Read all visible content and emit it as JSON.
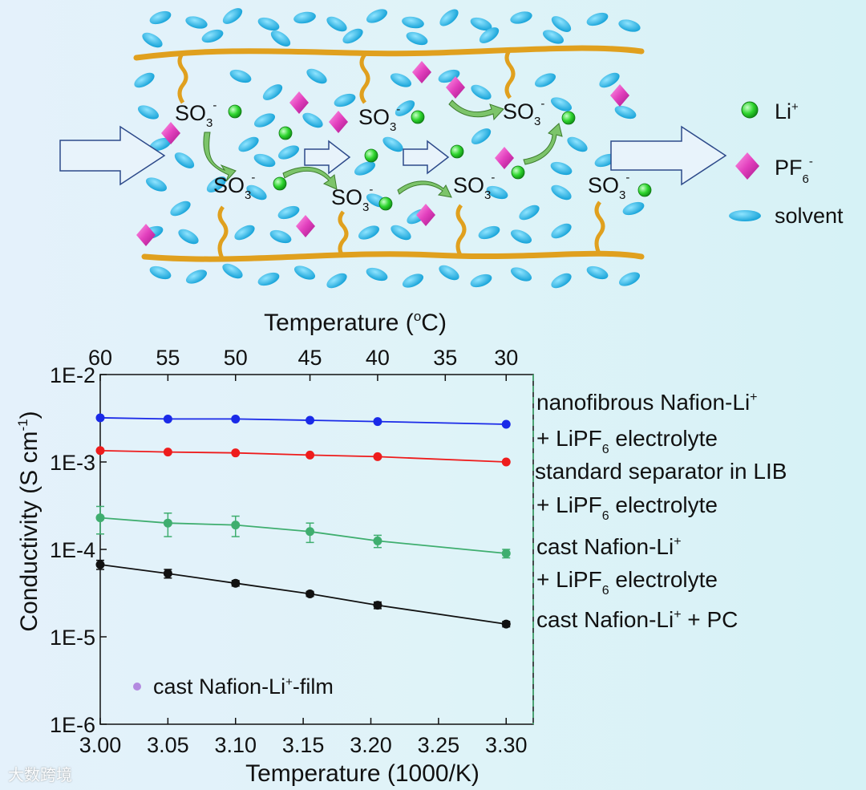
{
  "colors": {
    "solvent": "#19b6ea",
    "li": "#2fd62f",
    "pf6": "#e23fbd",
    "chain": "#e0a01e",
    "arrow": "#4a9d3b"
  },
  "diagram": {
    "so3_base": "SO",
    "so3_sub": "3",
    "so3_sup": "-"
  },
  "legend_top": {
    "li_base": "Li",
    "li_sup": "+",
    "pf6_base": "PF",
    "pf6_sub": "6",
    "pf6_sup": "-",
    "solvent": "solvent"
  },
  "chart_data": {
    "type": "line",
    "x_axis": {
      "label": "Temperature (1000/K)",
      "range": [
        3.0,
        3.32
      ],
      "ticks": [
        3.0,
        3.05,
        3.1,
        3.15,
        3.2,
        3.25,
        3.3
      ],
      "tick_labels": [
        "3.00",
        "3.05",
        "3.10",
        "3.15",
        "3.20",
        "3.25",
        "3.30"
      ]
    },
    "x2_axis": {
      "label_pre": "Temperature (",
      "label_sup": "o",
      "label_post": "C)",
      "tick_labels": [
        "60",
        "55",
        "50",
        "45",
        "40",
        "35",
        "30"
      ],
      "tick_positions": [
        3.0,
        3.05,
        3.1,
        3.155,
        3.205,
        3.255,
        3.3
      ]
    },
    "y_axis": {
      "label_pre": "Conductivity (S cm",
      "label_sup": "-1",
      "label_post": ")",
      "scale": "log",
      "range": [
        1e-06,
        0.01
      ],
      "tick_labels": [
        "1E-2",
        "1E-3",
        "1E-4",
        "1E-5",
        "1E-6"
      ],
      "tick_values": [
        0.01,
        0.001,
        0.0001,
        1e-05,
        1e-06
      ]
    },
    "series": [
      {
        "color": "#1a2ae8",
        "x": [
          3.0,
          3.05,
          3.1,
          3.155,
          3.205,
          3.3
        ],
        "y": [
          0.0032,
          0.0031,
          0.0031,
          0.003,
          0.0029,
          0.0027
        ]
      },
      {
        "color": "#ee1c1c",
        "x": [
          3.0,
          3.05,
          3.1,
          3.155,
          3.205,
          3.3
        ],
        "y": [
          0.00135,
          0.0013,
          0.00127,
          0.0012,
          0.00115,
          0.001
        ]
      },
      {
        "color": "#3fae6f",
        "x": [
          3.0,
          3.05,
          3.1,
          3.155,
          3.205,
          3.3
        ],
        "y": [
          0.00023,
          0.0002,
          0.00019,
          0.00016,
          0.000125,
          9e-05
        ],
        "err": [
          8e-05,
          6e-05,
          5e-05,
          4e-05,
          2e-05,
          1e-05
        ]
      },
      {
        "color": "#111111",
        "x": [
          3.0,
          3.05,
          3.1,
          3.155,
          3.205,
          3.3
        ],
        "y": [
          6.7e-05,
          5.3e-05,
          4.1e-05,
          3.1e-05,
          2.3e-05,
          1.4e-05
        ],
        "err": [
          8e-06,
          6e-06,
          3e-06,
          2e-06,
          2e-06,
          1e-06
        ]
      }
    ],
    "side_labels": {
      "nano_line1_pre": "nanofibrous Nafion-Li",
      "nano_line1_sup": "+",
      "nano_line2_pre": "+ LiPF",
      "nano_line2_sub": "6",
      "nano_line2_post": " electrolyte",
      "sep_line1": "standard separator in LIB",
      "sep_line2_pre": "+ LiPF",
      "sep_line2_sub": "6",
      "sep_line2_post": " electrolyte",
      "cast_line1_pre": "cast Nafion-Li",
      "cast_line1_sup": "+",
      "cast_line2_pre": "+ LiPF",
      "cast_line2_sub": "6",
      "cast_line2_post": " electrolyte",
      "pc_pre": "cast Nafion-Li",
      "pc_sup": "+",
      "pc_post": " + PC"
    },
    "inset_legend": {
      "color": "#b38ae0",
      "label_pre": "cast Nafion-Li",
      "label_sup": "+",
      "label_post": "-film"
    }
  },
  "watermark": "大数跨境"
}
